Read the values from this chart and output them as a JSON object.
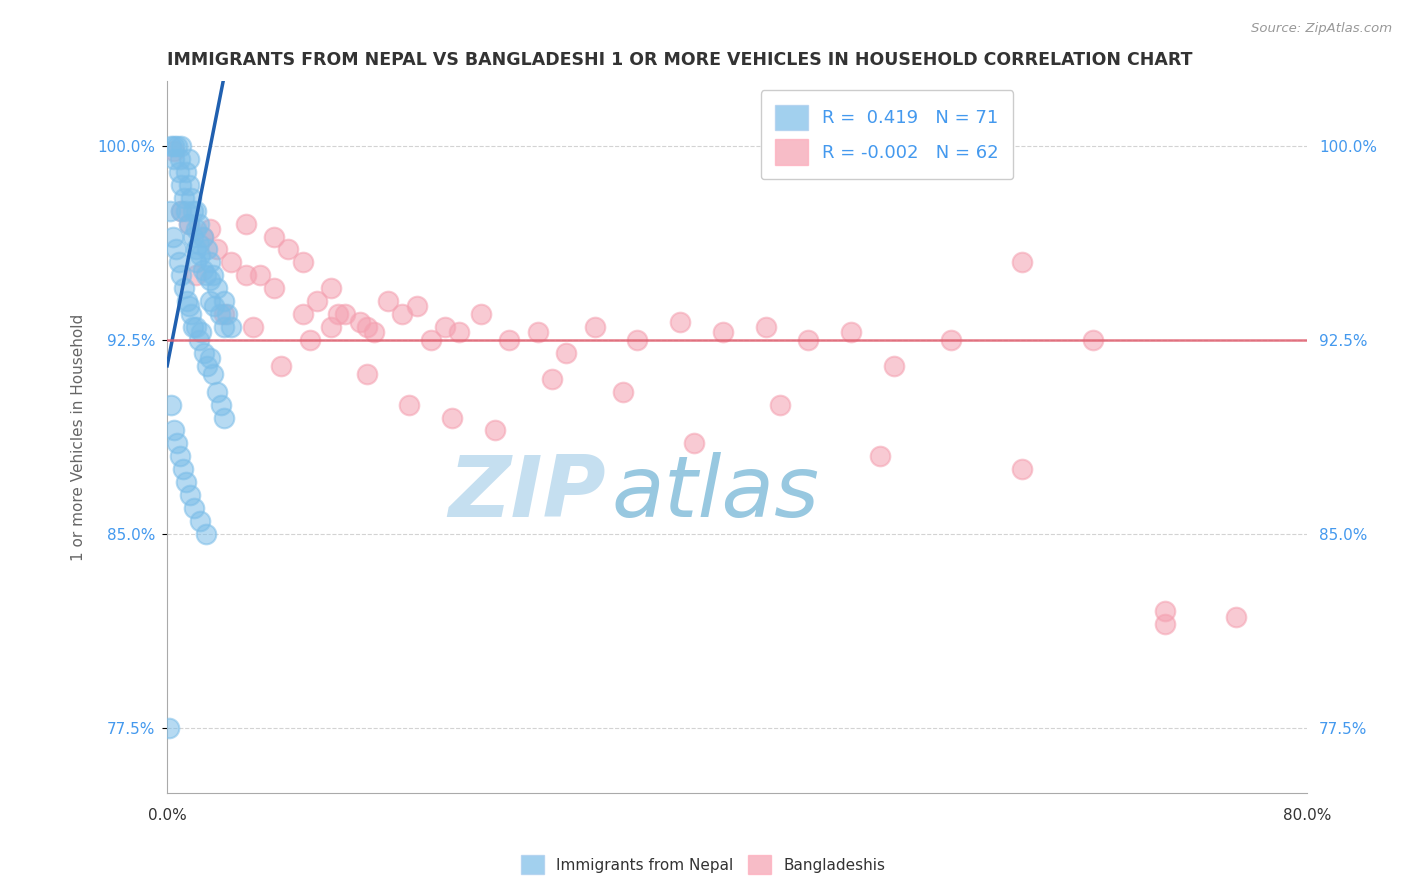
{
  "title": "IMMIGRANTS FROM NEPAL VS BANGLADESHI 1 OR MORE VEHICLES IN HOUSEHOLD CORRELATION CHART",
  "source_text": "Source: ZipAtlas.com",
  "ylabel": "1 or more Vehicles in Household",
  "xlim": [
    0.0,
    80.0
  ],
  "ylim": [
    75.0,
    102.5
  ],
  "yticks": [
    77.5,
    85.0,
    92.5,
    100.0
  ],
  "xticks": [
    0.0,
    20.0,
    40.0,
    60.0,
    80.0
  ],
  "xtick_labels": [
    "0.0%",
    "",
    "",
    "",
    "80.0%"
  ],
  "ytick_labels": [
    "77.5%",
    "85.0%",
    "92.5%",
    "100.0%"
  ],
  "nepal_R": 0.419,
  "nepal_N": 71,
  "bangla_R": -0.002,
  "bangla_N": 62,
  "nepal_color": "#7bbde8",
  "bangla_color": "#f4a0b0",
  "nepal_line_color": "#2060b0",
  "bangla_line_color": "#e06070",
  "nepal_x": [
    0.3,
    0.5,
    0.5,
    0.7,
    0.8,
    0.9,
    1.0,
    1.0,
    1.0,
    1.2,
    1.3,
    1.3,
    1.5,
    1.5,
    1.5,
    1.7,
    1.8,
    1.8,
    2.0,
    2.0,
    2.0,
    2.0,
    2.2,
    2.2,
    2.3,
    2.5,
    2.5,
    2.7,
    2.8,
    3.0,
    3.0,
    3.0,
    3.2,
    3.3,
    3.5,
    3.7,
    4.0,
    4.0,
    4.2,
    4.5,
    0.2,
    0.4,
    0.6,
    0.8,
    1.0,
    1.2,
    1.4,
    1.5,
    1.7,
    1.8,
    2.0,
    2.2,
    2.4,
    2.6,
    2.8,
    3.0,
    3.2,
    3.5,
    3.8,
    4.0,
    0.3,
    0.5,
    0.7,
    0.9,
    1.1,
    1.3,
    1.6,
    1.9,
    2.3,
    2.7,
    0.1
  ],
  "nepal_y": [
    100.0,
    100.0,
    99.5,
    100.0,
    99.0,
    99.5,
    100.0,
    98.5,
    97.5,
    98.0,
    97.5,
    99.0,
    98.5,
    97.0,
    99.5,
    98.0,
    97.5,
    96.5,
    97.5,
    96.8,
    96.0,
    95.5,
    97.0,
    96.2,
    95.8,
    96.5,
    95.2,
    95.0,
    96.0,
    95.5,
    94.8,
    94.0,
    95.0,
    93.8,
    94.5,
    93.5,
    94.0,
    93.0,
    93.5,
    93.0,
    97.5,
    96.5,
    96.0,
    95.5,
    95.0,
    94.5,
    94.0,
    93.8,
    93.5,
    93.0,
    93.0,
    92.5,
    92.8,
    92.0,
    91.5,
    91.8,
    91.2,
    90.5,
    90.0,
    89.5,
    90.0,
    89.0,
    88.5,
    88.0,
    87.5,
    87.0,
    86.5,
    86.0,
    85.5,
    85.0,
    77.5
  ],
  "bangla_x": [
    0.5,
    1.5,
    2.5,
    3.5,
    4.5,
    5.5,
    6.5,
    7.5,
    8.5,
    9.5,
    10.5,
    11.5,
    12.5,
    13.5,
    14.5,
    15.5,
    16.5,
    17.5,
    18.5,
    19.5,
    20.5,
    22.0,
    24.0,
    26.0,
    28.0,
    30.0,
    33.0,
    36.0,
    39.0,
    42.0,
    45.0,
    48.0,
    51.0,
    55.0,
    60.0,
    65.0,
    70.0,
    75.0,
    2.0,
    4.0,
    6.0,
    8.0,
    10.0,
    12.0,
    14.0,
    17.0,
    20.0,
    23.0,
    27.0,
    32.0,
    37.0,
    43.0,
    50.0,
    60.0,
    70.0,
    1.0,
    3.0,
    5.5,
    7.5,
    9.5,
    11.5,
    14.0
  ],
  "bangla_y": [
    99.8,
    97.0,
    96.5,
    96.0,
    95.5,
    97.0,
    95.0,
    94.5,
    96.0,
    93.5,
    94.0,
    93.0,
    93.5,
    93.2,
    92.8,
    94.0,
    93.5,
    93.8,
    92.5,
    93.0,
    92.8,
    93.5,
    92.5,
    92.8,
    92.0,
    93.0,
    92.5,
    93.2,
    92.8,
    93.0,
    92.5,
    92.8,
    91.5,
    92.5,
    95.5,
    92.5,
    81.5,
    81.8,
    95.0,
    93.5,
    93.0,
    91.5,
    92.5,
    93.5,
    91.2,
    90.0,
    89.5,
    89.0,
    91.0,
    90.5,
    88.5,
    90.0,
    88.0,
    87.5,
    82.0,
    97.5,
    96.8,
    95.0,
    96.5,
    95.5,
    94.5,
    93.0
  ],
  "background_color": "#ffffff",
  "grid_color": "#c8c8c8",
  "title_color": "#333333",
  "axis_label_color": "#666666",
  "tick_color_blue": "#4499ee",
  "watermark_zip": "ZIP",
  "watermark_atlas": "atlas",
  "watermark_color_zip": "#c5dff0",
  "watermark_color_atlas": "#98c8e0",
  "legend_nepal_label": "Immigrants from Nepal",
  "legend_bangla_label": "Bangladeshis",
  "nepal_line_slope": 2.8,
  "nepal_line_intercept": 91.5,
  "bangla_line_y": 92.5
}
